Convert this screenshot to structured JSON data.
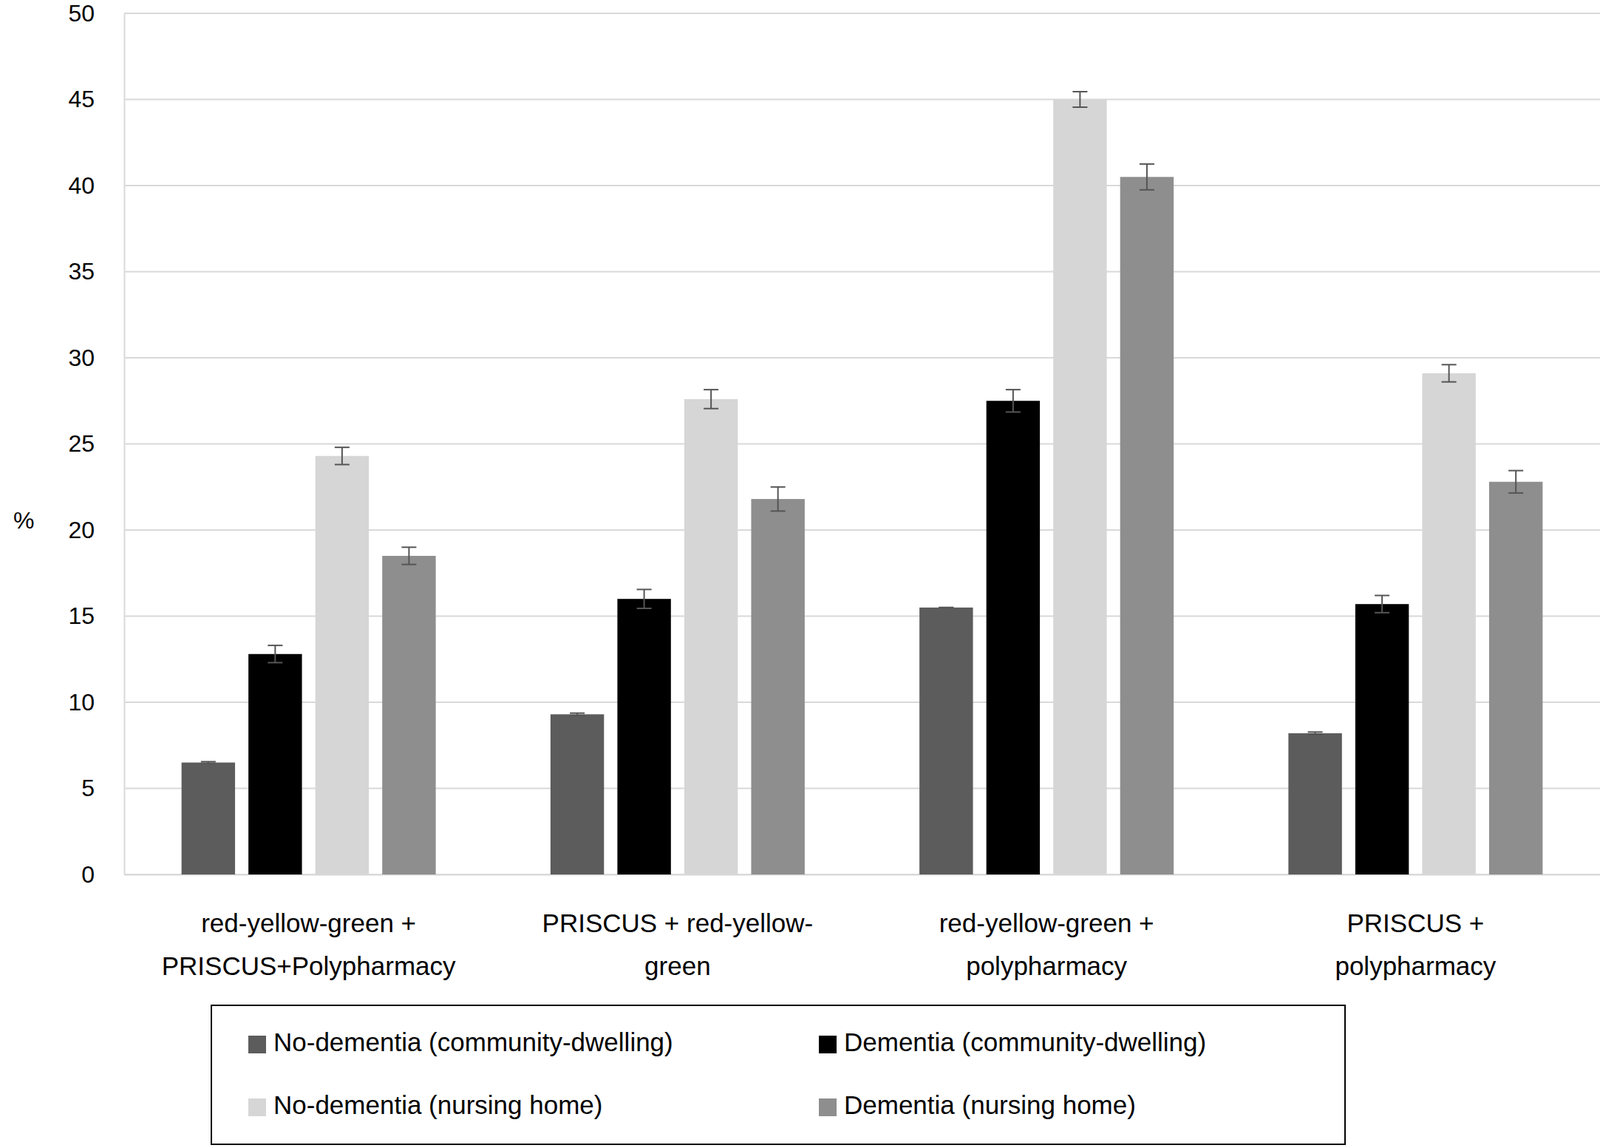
{
  "chart_data": {
    "type": "bar",
    "y_label": "%",
    "categories": [
      "red-yellow-green +\nPRISCUS+Polypharmacy",
      "PRISCUS + red-yellow-\ngreen",
      "red-yellow-green +\npolypharmacy",
      "PRISCUS +\npolypharmacy"
    ],
    "series": [
      {
        "name": "No-dementia (community-dwelling)",
        "color": "#5c5c5c",
        "values": [
          6.5,
          9.3,
          15.5,
          8.2
        ],
        "errors": [
          0.05,
          0.07,
          0,
          0.07
        ]
      },
      {
        "name": "Dementia (community-dwelling)",
        "color": "#000000",
        "values": [
          12.8,
          16.0,
          27.5,
          15.7
        ],
        "errors": [
          0.5,
          0.55,
          0.65,
          0.5
        ]
      },
      {
        "name": "No-dementia (nursing home)",
        "color": "#d6d6d6",
        "values": [
          24.3,
          27.6,
          45.0,
          29.1
        ],
        "errors": [
          0.5,
          0.55,
          0.45,
          0.5
        ]
      },
      {
        "name": "Dementia (nursing home)",
        "color": "#8e8e8e",
        "values": [
          18.5,
          21.8,
          40.5,
          22.8
        ],
        "errors": [
          0.5,
          0.7,
          0.75,
          0.65
        ]
      }
    ],
    "ylim": [
      0,
      50
    ],
    "yticks": [
      0,
      5,
      10,
      15,
      20,
      25,
      30,
      35,
      40,
      45,
      50
    ],
    "grid": true,
    "legend": "bottom"
  }
}
